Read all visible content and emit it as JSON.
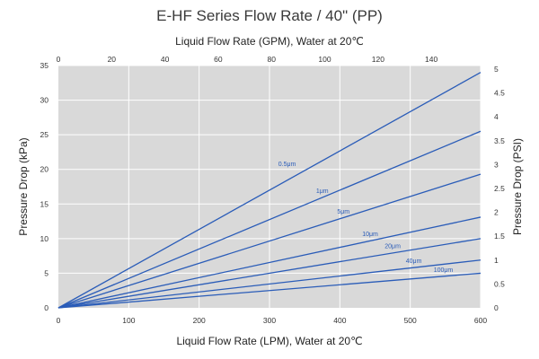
{
  "chart_data": {
    "type": "line",
    "title": "E-HF Series Flow Rate  /  40\" (PP)",
    "xlabel": "Liquid Flow Rate (LPM), Water at 20℃",
    "x2label": "Liquid Flow Rate (GPM), Water at 20℃",
    "ylabel": "Pressure Drop (kPa)",
    "y2label": "Pressure Drop (PSI)",
    "xlim": [
      0,
      600
    ],
    "ylim": [
      0,
      35
    ],
    "x2lim": [
      0,
      158.5
    ],
    "y2lim": [
      0,
      5.076
    ],
    "x_ticks": [
      0,
      100,
      200,
      300,
      400,
      500,
      600
    ],
    "y_ticks": [
      0,
      5,
      10,
      15,
      20,
      25,
      30,
      35
    ],
    "x2_ticks": [
      0,
      20,
      40,
      60,
      80,
      100,
      120,
      140
    ],
    "y2_ticks": [
      0,
      0.5,
      1,
      1.5,
      2,
      2.5,
      3,
      3.5,
      4,
      4.5,
      5
    ],
    "x_tick_labels": [
      "0",
      "100",
      "200",
      "300",
      "400",
      "500",
      "600"
    ],
    "y_tick_labels": [
      "0",
      "5",
      "10",
      "15",
      "20",
      "25",
      "30",
      "35"
    ],
    "x2_tick_labels": [
      "0",
      "20",
      "40",
      "60",
      "80",
      "100",
      "120",
      "140"
    ],
    "y2_tick_labels": [
      "0",
      "0.5",
      "1",
      "1.5",
      "2",
      "2.5",
      "3",
      "3.5",
      "4",
      "4.5",
      "5"
    ],
    "grid": true,
    "line_color": "#2a5cb8",
    "plot_background": "#d9d9d9",
    "series": [
      {
        "name": "0.5μm",
        "x": [
          0,
          600
        ],
        "y": [
          0,
          34.0
        ],
        "label_at": [
          325,
          20.5
        ]
      },
      {
        "name": "1μm",
        "x": [
          0,
          600
        ],
        "y": [
          0,
          25.5
        ],
        "label_at": [
          375,
          16.6
        ]
      },
      {
        "name": "5μm",
        "x": [
          0,
          600
        ],
        "y": [
          0,
          19.3
        ],
        "label_at": [
          405,
          13.6
        ]
      },
      {
        "name": "10μm",
        "x": [
          0,
          600
        ],
        "y": [
          0,
          13.1
        ],
        "label_at": [
          443,
          10.4
        ]
      },
      {
        "name": "20μm",
        "x": [
          0,
          600
        ],
        "y": [
          0,
          10.0
        ],
        "label_at": [
          475,
          8.6
        ]
      },
      {
        "name": "40μm",
        "x": [
          0,
          600
        ],
        "y": [
          0,
          6.9
        ],
        "label_at": [
          505,
          6.5
        ]
      },
      {
        "name": "100μm",
        "x": [
          0,
          600
        ],
        "y": [
          0,
          5.0
        ],
        "label_at": [
          547,
          5.2
        ]
      }
    ]
  }
}
